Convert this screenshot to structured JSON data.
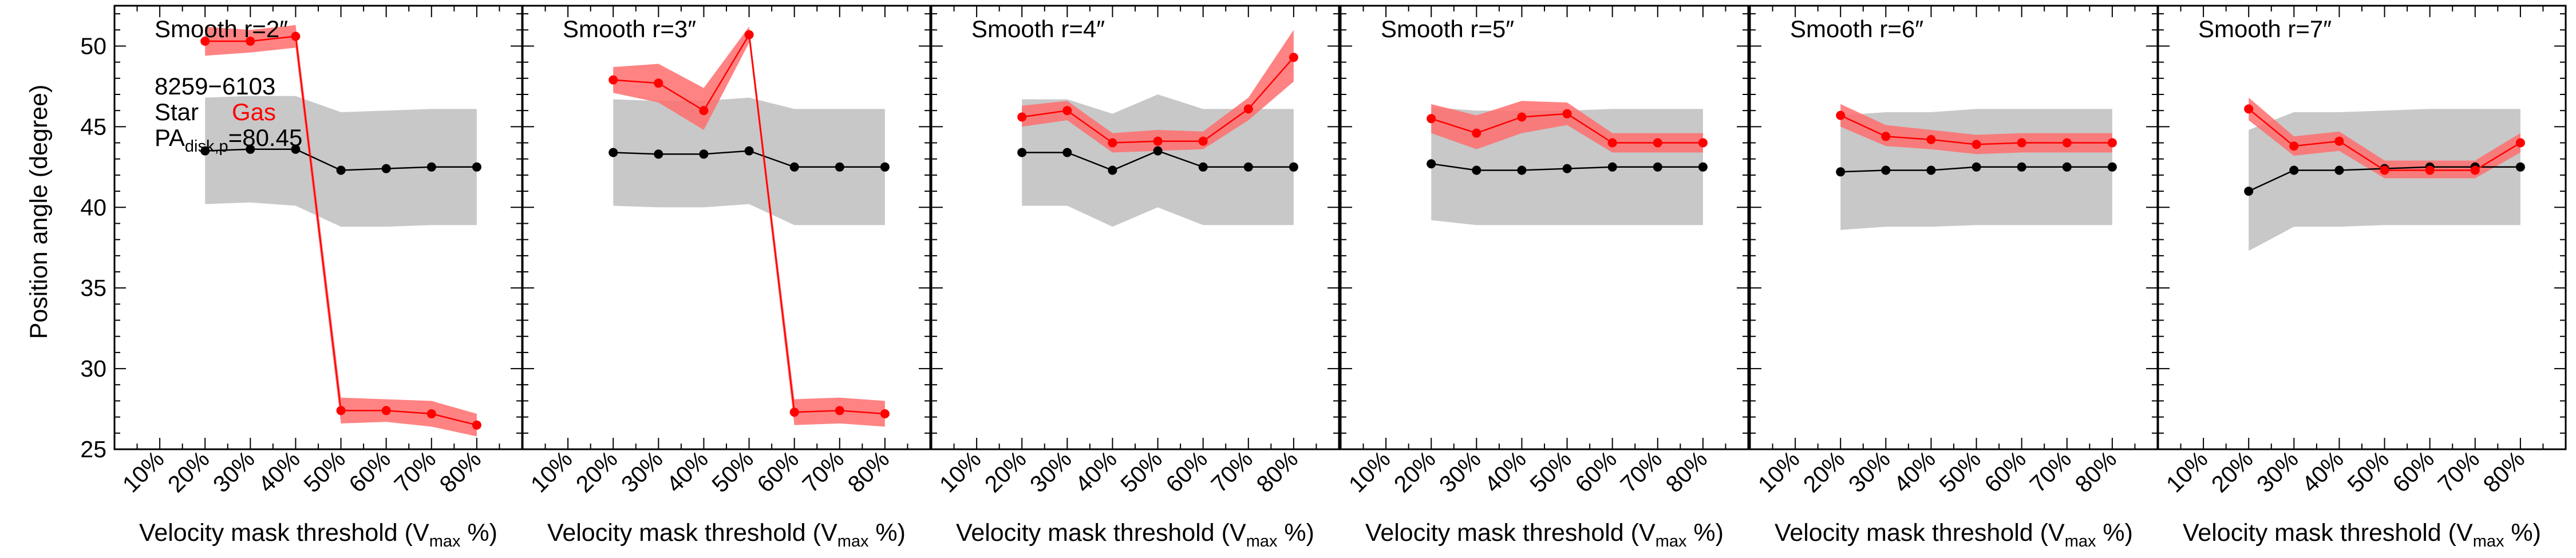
{
  "figure": {
    "ylabel": "Position angle (degree)",
    "galaxy_id": "8259−6103",
    "legend": {
      "star_label": "Star",
      "gas_label": "Gas"
    },
    "pa_label": {
      "prefix": "PA",
      "subscript": "disk,p",
      "value": "=80.45"
    },
    "xlabel": {
      "prefix": "Velocity mask threshold (V",
      "subscript": "max",
      "suffix": " %)"
    }
  },
  "colors": {
    "gas": "#ff0000",
    "gas_band": "#ff6d6d",
    "star": "#000000",
    "star_band": "#c8c8c8"
  },
  "chart_data": [
    {
      "type": "line",
      "title": "Smooth r=2″",
      "categories": [
        "10%",
        "20%",
        "30%",
        "40%",
        "50%",
        "60%",
        "70%",
        "80%"
      ],
      "xticks": [
        10,
        20,
        30,
        40,
        50,
        60,
        70,
        80
      ],
      "xlim": [
        0,
        90
      ],
      "ylim": [
        25,
        52.5
      ],
      "yticks": [
        25,
        30,
        35,
        40,
        45,
        50
      ],
      "series": [
        {
          "name": "Star",
          "x": [
            20,
            30,
            40,
            50,
            60,
            70,
            80
          ],
          "values": [
            43.5,
            43.6,
            43.6,
            42.3,
            42.4,
            42.5,
            42.5
          ],
          "band_low": [
            40.2,
            40.3,
            40.1,
            38.8,
            38.8,
            38.9,
            38.9
          ],
          "band_high": [
            46.8,
            46.9,
            46.9,
            45.9,
            46.0,
            46.1,
            46.1
          ]
        },
        {
          "name": "Gas",
          "x": [
            20,
            30,
            40,
            50,
            60,
            70,
            80
          ],
          "values": [
            50.3,
            50.3,
            50.6,
            27.4,
            27.4,
            27.2,
            26.5
          ],
          "band_low": [
            49.4,
            49.6,
            49.9,
            26.6,
            26.7,
            26.4,
            25.8
          ],
          "band_high": [
            51.2,
            51.0,
            51.3,
            28.2,
            28.1,
            28.0,
            27.2
          ]
        }
      ]
    },
    {
      "type": "line",
      "title": "Smooth r=3″",
      "categories": [
        "10%",
        "20%",
        "30%",
        "40%",
        "50%",
        "60%",
        "70%",
        "80%"
      ],
      "xticks": [
        10,
        20,
        30,
        40,
        50,
        60,
        70,
        80
      ],
      "xlim": [
        0,
        90
      ],
      "ylim": [
        25,
        52.5
      ],
      "yticks": [
        25,
        30,
        35,
        40,
        45,
        50
      ],
      "series": [
        {
          "name": "Star",
          "x": [
            20,
            30,
            40,
            50,
            60,
            70,
            80
          ],
          "values": [
            43.4,
            43.3,
            43.3,
            43.5,
            42.5,
            42.5,
            42.5
          ],
          "band_low": [
            40.1,
            40.0,
            40.0,
            40.2,
            38.9,
            38.9,
            38.9
          ],
          "band_high": [
            46.7,
            46.6,
            46.6,
            46.8,
            46.1,
            46.1,
            46.1
          ]
        },
        {
          "name": "Gas",
          "x": [
            20,
            30,
            40,
            50,
            60,
            70,
            80
          ],
          "values": [
            47.9,
            47.7,
            46.0,
            50.7,
            27.3,
            27.4,
            27.2
          ],
          "band_low": [
            47.1,
            46.5,
            44.8,
            50.2,
            26.5,
            26.6,
            26.4
          ],
          "band_high": [
            48.7,
            48.9,
            47.4,
            51.2,
            28.1,
            28.2,
            28.0
          ]
        }
      ]
    },
    {
      "type": "line",
      "title": "Smooth r=4″",
      "categories": [
        "10%",
        "20%",
        "30%",
        "40%",
        "50%",
        "60%",
        "70%",
        "80%"
      ],
      "xticks": [
        10,
        20,
        30,
        40,
        50,
        60,
        70,
        80
      ],
      "xlim": [
        0,
        90
      ],
      "ylim": [
        25,
        52.5
      ],
      "yticks": [
        25,
        30,
        35,
        40,
        45,
        50
      ],
      "series": [
        {
          "name": "Star",
          "x": [
            20,
            30,
            40,
            50,
            60,
            70,
            80
          ],
          "values": [
            43.4,
            43.4,
            42.3,
            43.5,
            42.5,
            42.5,
            42.5
          ],
          "band_low": [
            40.1,
            40.1,
            38.8,
            40.0,
            38.9,
            38.9,
            38.9
          ],
          "band_high": [
            46.7,
            46.7,
            45.8,
            47.0,
            46.1,
            46.1,
            46.1
          ]
        },
        {
          "name": "Gas",
          "x": [
            20,
            30,
            40,
            50,
            60,
            70,
            80
          ],
          "values": [
            45.6,
            46.0,
            44.0,
            44.1,
            44.1,
            46.1,
            49.3
          ],
          "band_low": [
            45.0,
            45.4,
            43.4,
            43.5,
            43.6,
            45.4,
            47.8
          ],
          "band_high": [
            46.3,
            46.6,
            44.6,
            44.8,
            44.7,
            46.8,
            51.0
          ]
        }
      ]
    },
    {
      "type": "line",
      "title": "Smooth r=5″",
      "categories": [
        "10%",
        "20%",
        "30%",
        "40%",
        "50%",
        "60%",
        "70%",
        "80%"
      ],
      "xticks": [
        10,
        20,
        30,
        40,
        50,
        60,
        70,
        80
      ],
      "xlim": [
        0,
        90
      ],
      "ylim": [
        25,
        52.5
      ],
      "yticks": [
        25,
        30,
        35,
        40,
        45,
        50
      ],
      "series": [
        {
          "name": "Star",
          "x": [
            20,
            30,
            40,
            50,
            60,
            70,
            80
          ],
          "values": [
            42.7,
            42.3,
            42.3,
            42.4,
            42.5,
            42.5,
            42.5
          ],
          "band_low": [
            39.2,
            38.9,
            38.9,
            38.9,
            38.9,
            38.9,
            38.9
          ],
          "band_high": [
            46.2,
            46.0,
            46.0,
            46.0,
            46.1,
            46.1,
            46.1
          ]
        },
        {
          "name": "Gas",
          "x": [
            20,
            30,
            40,
            50,
            60,
            70,
            80
          ],
          "values": [
            45.5,
            44.6,
            45.6,
            45.8,
            44.0,
            44.0,
            44.0
          ],
          "band_low": [
            44.6,
            43.6,
            44.6,
            45.1,
            43.4,
            43.4,
            43.4
          ],
          "band_high": [
            46.4,
            45.7,
            46.6,
            46.5,
            44.6,
            44.6,
            44.6
          ]
        }
      ]
    },
    {
      "type": "line",
      "title": "Smooth r=6″",
      "categories": [
        "10%",
        "20%",
        "30%",
        "40%",
        "50%",
        "60%",
        "70%",
        "80%"
      ],
      "xticks": [
        10,
        20,
        30,
        40,
        50,
        60,
        70,
        80
      ],
      "xlim": [
        0,
        90
      ],
      "ylim": [
        25,
        52.5
      ],
      "yticks": [
        25,
        30,
        35,
        40,
        45,
        50
      ],
      "series": [
        {
          "name": "Star",
          "x": [
            20,
            30,
            40,
            50,
            60,
            70,
            80
          ],
          "values": [
            42.2,
            42.3,
            42.3,
            42.5,
            42.5,
            42.5,
            42.5
          ],
          "band_low": [
            38.6,
            38.8,
            38.8,
            38.9,
            38.9,
            38.9,
            38.9
          ],
          "band_high": [
            45.7,
            45.9,
            45.9,
            46.1,
            46.1,
            46.1,
            46.1
          ]
        },
        {
          "name": "Gas",
          "x": [
            20,
            30,
            40,
            50,
            60,
            70,
            80
          ],
          "values": [
            45.7,
            44.4,
            44.2,
            43.9,
            44.0,
            44.0,
            44.0
          ],
          "band_low": [
            45.0,
            43.8,
            43.6,
            43.3,
            43.4,
            43.4,
            43.4
          ],
          "band_high": [
            46.4,
            45.1,
            44.8,
            44.5,
            44.6,
            44.6,
            44.6
          ]
        }
      ]
    },
    {
      "type": "line",
      "title": "Smooth r=7″",
      "categories": [
        "10%",
        "20%",
        "30%",
        "40%",
        "50%",
        "60%",
        "70%",
        "80%"
      ],
      "xticks": [
        10,
        20,
        30,
        40,
        50,
        60,
        70,
        80
      ],
      "xlim": [
        0,
        90
      ],
      "ylim": [
        25,
        52.5
      ],
      "yticks": [
        25,
        30,
        35,
        40,
        45,
        50
      ],
      "series": [
        {
          "name": "Star",
          "x": [
            20,
            30,
            40,
            50,
            60,
            70,
            80
          ],
          "values": [
            41.0,
            42.3,
            42.3,
            42.4,
            42.5,
            42.5,
            42.5
          ],
          "band_low": [
            37.3,
            38.8,
            38.8,
            38.9,
            38.9,
            38.9,
            38.9
          ],
          "band_high": [
            44.8,
            45.9,
            45.9,
            46.0,
            46.1,
            46.1,
            46.1
          ]
        },
        {
          "name": "Gas",
          "x": [
            20,
            30,
            40,
            50,
            60,
            70,
            80
          ],
          "values": [
            46.1,
            43.8,
            44.1,
            42.3,
            42.3,
            42.3,
            44.0
          ],
          "band_low": [
            45.4,
            43.2,
            43.5,
            41.8,
            41.8,
            41.8,
            43.4
          ],
          "band_high": [
            46.8,
            44.4,
            44.7,
            42.9,
            42.9,
            42.9,
            44.6
          ]
        }
      ]
    }
  ]
}
